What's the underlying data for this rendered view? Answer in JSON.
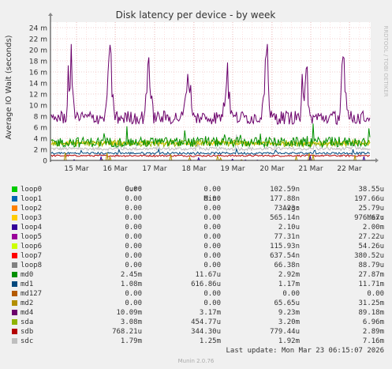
{
  "chart_data": {
    "type": "line",
    "title": "Disk latency per device - by week",
    "ylabel": "Average IO Wait (seconds)",
    "watermark": "RRDTOOL / TOBI OETIKER",
    "ylim": [
      0,
      0.025
    ],
    "y_tick_labels": [
      "0",
      "2 m",
      "4 m",
      "6 m",
      "8 m",
      "10 m",
      "12 m",
      "14 m",
      "16 m",
      "18 m",
      "20 m",
      "22 m",
      "24 m"
    ],
    "x_tick_labels": [
      "15 Mar",
      "16 Mar",
      "17 Mar",
      "18 Mar",
      "19 Mar",
      "20 Mar",
      "21 Mar",
      "22 Mar"
    ],
    "grid": true,
    "series": [
      {
        "name": "loop0",
        "color": "#00cc00",
        "cur": "0.00",
        "min": "0.00",
        "avg": "102.59n",
        "max": "38.55u"
      },
      {
        "name": "loop1",
        "color": "#0066b3",
        "cur": "0.00",
        "min": "0.00",
        "avg": "177.88n",
        "max": "197.66u"
      },
      {
        "name": "loop2",
        "color": "#ff8000",
        "cur": "0.00",
        "min": "0.00",
        "avg": "73.23n",
        "max": "25.79u"
      },
      {
        "name": "loop3",
        "color": "#ffcc00",
        "cur": "0.00",
        "min": "0.00",
        "avg": "565.14n",
        "max": "976.67u"
      },
      {
        "name": "loop4",
        "color": "#330099",
        "cur": "0.00",
        "min": "0.00",
        "avg": "2.10u",
        "max": "2.00m"
      },
      {
        "name": "loop5",
        "color": "#990099",
        "cur": "0.00",
        "min": "0.00",
        "avg": "77.31n",
        "max": "27.22u"
      },
      {
        "name": "loop6",
        "color": "#ccff00",
        "cur": "0.00",
        "min": "0.00",
        "avg": "115.93n",
        "max": "54.26u"
      },
      {
        "name": "loop7",
        "color": "#ff0000",
        "cur": "0.00",
        "min": "0.00",
        "avg": "637.54n",
        "max": "380.52u"
      },
      {
        "name": "loop8",
        "color": "#808080",
        "cur": "0.00",
        "min": "0.00",
        "avg": "66.38n",
        "max": "88.79u"
      },
      {
        "name": "md0",
        "color": "#008f00",
        "cur": "2.45m",
        "min": "11.67u",
        "avg": "2.92m",
        "max": "27.87m"
      },
      {
        "name": "md1",
        "color": "#00487d",
        "cur": "1.08m",
        "min": "616.86u",
        "avg": "1.17m",
        "max": "11.71m"
      },
      {
        "name": "md127",
        "color": "#b35a00",
        "cur": "0.00",
        "min": "0.00",
        "avg": "0.00",
        "max": "0.00"
      },
      {
        "name": "md2",
        "color": "#b38f00",
        "cur": "0.00",
        "min": "0.00",
        "avg": "65.65u",
        "max": "31.25m"
      },
      {
        "name": "md4",
        "color": "#6b006b",
        "cur": "10.09m",
        "min": "3.17m",
        "avg": "9.23m",
        "max": "89.18m"
      },
      {
        "name": "sda",
        "color": "#8fb300",
        "cur": "3.08m",
        "min": "454.77u",
        "avg": "3.20m",
        "max": "6.96m"
      },
      {
        "name": "sdb",
        "color": "#b30000",
        "cur": "768.21u",
        "min": "344.30u",
        "avg": "779.44u",
        "max": "2.89m"
      },
      {
        "name": "sdc",
        "color": "#bebebe",
        "cur": "1.79m",
        "min": "1.25m",
        "avg": "1.92m",
        "max": "7.16m"
      }
    ]
  },
  "legend_headers": {
    "cur": "Cur:",
    "min": "Min:",
    "avg": "Avg:",
    "max": "Max:"
  },
  "last_update": "Last update: Mon Mar 23 06:15:07 2026",
  "munin_version": "Munin 2.0.76"
}
